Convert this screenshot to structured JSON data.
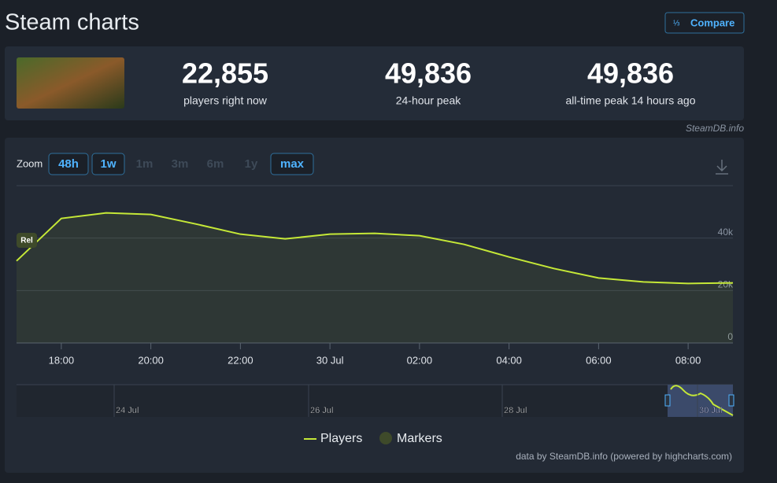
{
  "header": {
    "title": "Steam charts",
    "compare": "Compare"
  },
  "stats": [
    {
      "value": "22,855",
      "label": "players right now"
    },
    {
      "value": "49,836",
      "label": "24-hour peak"
    },
    {
      "value": "49,836",
      "label": "all-time peak 14 hours ago"
    }
  ],
  "source": "SteamDB.info",
  "zoom": {
    "label": "Zoom",
    "buttons": [
      "48h",
      "1w",
      "1m",
      "3m",
      "6m",
      "1y",
      "max"
    ]
  },
  "chart_data": {
    "type": "line",
    "categories": [
      null,
      "18:00",
      null,
      "20:00",
      null,
      "22:00",
      null,
      "30 Jul",
      null,
      "02:00",
      null,
      "04:00",
      null,
      "06:00",
      null,
      "08:00",
      null
    ],
    "series": [
      {
        "name": "Players",
        "color": "#c5e837",
        "values": [
          31300,
          47500,
          49600,
          49000,
          45400,
          41500,
          39700,
          41500,
          41800,
          40900,
          37600,
          32800,
          28400,
          24800,
          23300,
          22700,
          22900
        ]
      }
    ],
    "ylim": [
      0,
      60000
    ],
    "yticks": [
      0,
      {
        "value": 20000,
        "label": "20k"
      },
      {
        "value": 40000,
        "label": "40k"
      }
    ],
    "grid": true,
    "marker_label": "Rel",
    "legend_markers": "Markers"
  },
  "navigator": {
    "labels": [
      "24 Jul",
      "26 Jul",
      "28 Jul",
      "30 Jul"
    ]
  },
  "footer": "data by SteamDB.info (powered by highcharts.com)"
}
